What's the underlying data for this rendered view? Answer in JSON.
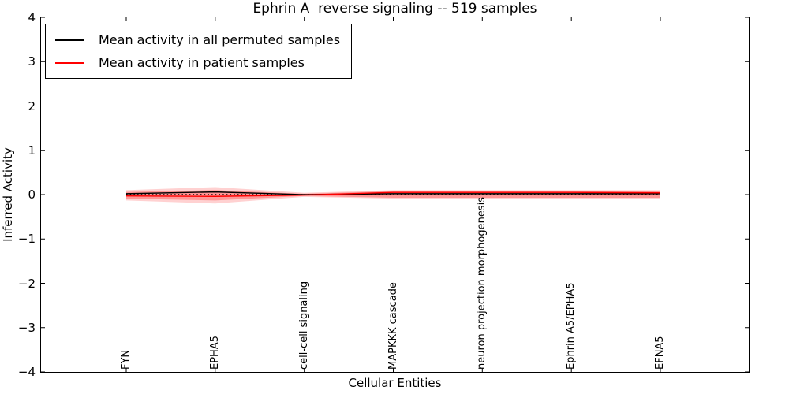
{
  "title": "Ephrin A  reverse signaling -- 519 samples",
  "chart_data": {
    "type": "line",
    "title": "Ephrin A  reverse signaling -- 519 samples",
    "xlabel": "Cellular Entities",
    "ylabel": "Inferred Activity",
    "ylim": [
      -4,
      4
    ],
    "yticks": [
      4,
      3,
      2,
      1,
      0,
      -1,
      -2,
      -3,
      -4
    ],
    "grid": false,
    "legend_position": "upper left",
    "categories": [
      "FYN",
      "EPHA5",
      "cell-cell signaling",
      "MAPKKK cascade",
      "neuron projection morphogenesis",
      "Ephrin A5/EPHA5",
      "EFNA5"
    ],
    "series": [
      {
        "name": "Mean activity in all permuted samples",
        "color": "#000000",
        "line_style": "solid",
        "values": [
          0.02,
          0.06,
          0.0,
          0.02,
          0.02,
          0.02,
          0.02
        ]
      },
      {
        "name": "Mean activity in patient samples",
        "color": "#ff0000",
        "line_style": "solid",
        "values": [
          -0.03,
          -0.04,
          -0.01,
          0.05,
          0.05,
          0.05,
          0.04
        ]
      }
    ],
    "reference_line": {
      "y": 0,
      "color": "#000000",
      "line_style": "dotted"
    },
    "bands": [
      {
        "name": "patient-std-outer",
        "color": "#ff0000",
        "opacity": 0.18,
        "upper": [
          0.1,
          0.17,
          0.04,
          0.1,
          0.1,
          0.1,
          0.1
        ],
        "lower": [
          -0.13,
          -0.2,
          -0.05,
          -0.09,
          -0.09,
          -0.09,
          -0.09
        ]
      },
      {
        "name": "patient-std-inner",
        "color": "#ff0000",
        "opacity": 0.28,
        "upper": [
          0.06,
          0.1,
          0.02,
          0.08,
          0.08,
          0.08,
          0.08
        ],
        "lower": [
          -0.09,
          -0.13,
          -0.03,
          -0.07,
          -0.07,
          -0.07,
          -0.07
        ]
      }
    ]
  }
}
